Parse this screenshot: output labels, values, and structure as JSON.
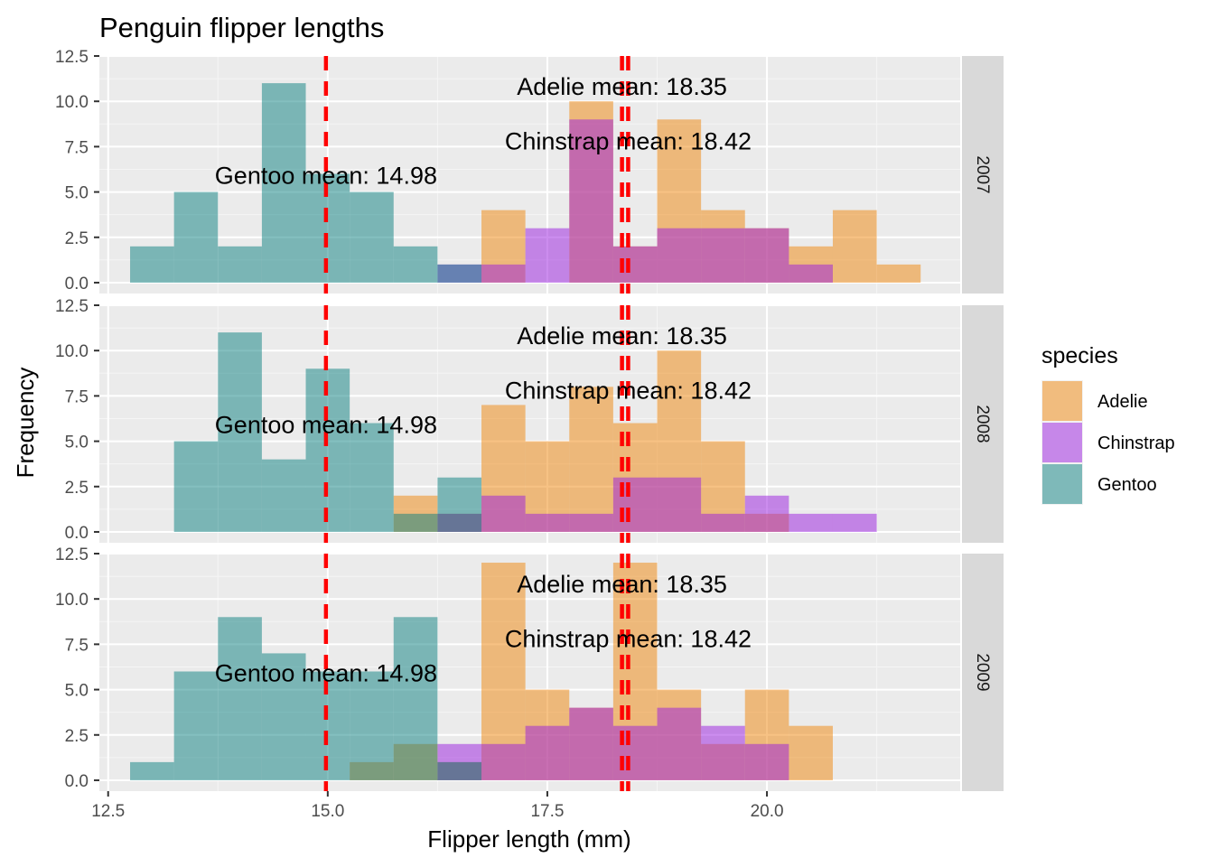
{
  "chart_data": {
    "type": "histogram",
    "title": "Penguin flipper lengths",
    "xlabel": "Flipper length (mm)",
    "ylabel": "Frequency",
    "xlim": [
      12.4,
      22.2
    ],
    "ylim": [
      -0.6,
      12.5
    ],
    "x_ticks": [
      12.5,
      15.0,
      17.5,
      20.0
    ],
    "x_tick_labels": [
      "12.5",
      "15.0",
      "17.5",
      "20.0"
    ],
    "y_ticks": [
      0,
      2.5,
      5,
      7.5,
      10,
      12.5
    ],
    "y_tick_labels": [
      "0.0",
      "2.5",
      "5.0",
      "7.5",
      "10.0",
      "12.5"
    ],
    "bin_width": 0.5,
    "bin_starts": [
      12.75,
      13.25,
      13.75,
      14.25,
      14.75,
      15.25,
      15.75,
      16.25,
      16.75,
      17.25,
      17.75,
      18.25,
      18.75,
      19.25,
      19.75,
      20.25,
      20.75,
      21.25
    ],
    "bar_opacity": 0.5,
    "grid": true,
    "legend": {
      "title": "species",
      "position": "right",
      "entries": [
        {
          "label": "Adelie",
          "color": "#F0860A"
        },
        {
          "label": "Chinstrap",
          "color": "#9A1CE0"
        },
        {
          "label": "Gentoo",
          "color": "#0A8080"
        }
      ]
    },
    "mean_lines": [
      {
        "species": "Gentoo",
        "x": 14.98,
        "label": "Gentoo mean: 14.98",
        "label_y": 5.9
      },
      {
        "species": "Adelie",
        "x": 18.35,
        "label": "Adelie mean: 18.35",
        "label_y": 10.8
      },
      {
        "species": "Chinstrap",
        "x": 18.42,
        "label": "Chinstrap mean: 18.42",
        "label_y": 7.8
      }
    ],
    "mean_line_color": "#FF0000",
    "facets": [
      {
        "label": "2007",
        "series": [
          {
            "name": "Adelie",
            "values": [
              0,
              0,
              0,
              0,
              0,
              0,
              0,
              0,
              4,
              0,
              10,
              2,
              9,
              4,
              3,
              2,
              4,
              1
            ]
          },
          {
            "name": "Chinstrap",
            "values": [
              0,
              0,
              0,
              0,
              0,
              0,
              0,
              1,
              1,
              3,
              9,
              2,
              3,
              3,
              3,
              1,
              0,
              0
            ]
          },
          {
            "name": "Gentoo",
            "values": [
              2,
              5,
              2,
              11,
              6,
              5,
              2,
              1,
              0,
              0,
              0,
              0,
              0,
              0,
              0,
              0,
              0,
              0
            ]
          }
        ]
      },
      {
        "label": "2008",
        "series": [
          {
            "name": "Adelie",
            "values": [
              0,
              0,
              0,
              0,
              0,
              0,
              2,
              1,
              7,
              5,
              8,
              6,
              10,
              5,
              1,
              0,
              0,
              0
            ]
          },
          {
            "name": "Chinstrap",
            "values": [
              0,
              0,
              0,
              0,
              0,
              0,
              0,
              1,
              2,
              1,
              1,
              3,
              3,
              1,
              2,
              1,
              1,
              0
            ]
          },
          {
            "name": "Gentoo",
            "values": [
              0,
              5,
              11,
              4,
              9,
              6,
              1,
              3,
              0,
              0,
              0,
              0,
              0,
              0,
              0,
              0,
              0,
              0
            ]
          }
        ]
      },
      {
        "label": "2009",
        "series": [
          {
            "name": "Adelie",
            "values": [
              0,
              0,
              0,
              0,
              0,
              1,
              2,
              1,
              12,
              5,
              4,
              12,
              5,
              2,
              5,
              3,
              0,
              0
            ]
          },
          {
            "name": "Chinstrap",
            "values": [
              0,
              0,
              0,
              0,
              0,
              0,
              0,
              2,
              2,
              3,
              4,
              3,
              4,
              3,
              2,
              0,
              0,
              0
            ]
          },
          {
            "name": "Gentoo",
            "values": [
              1,
              6,
              9,
              7,
              6,
              6,
              9,
              1,
              0,
              0,
              0,
              0,
              0,
              0,
              0,
              0,
              0,
              0
            ]
          }
        ]
      }
    ]
  }
}
